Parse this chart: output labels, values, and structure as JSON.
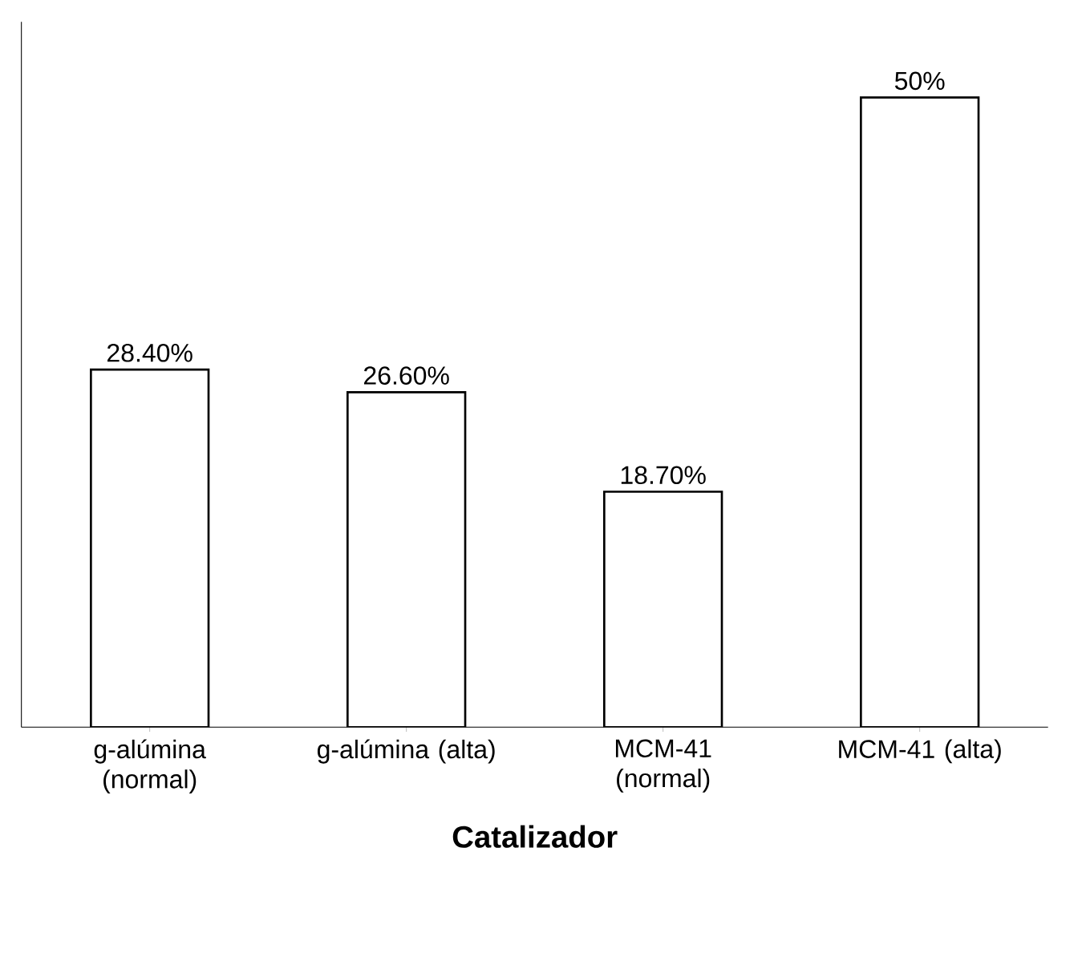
{
  "chart_data": {
    "type": "bar",
    "xlabel": "Catalizador",
    "categories": [
      "g-alúmina (normal)",
      "g-alúmina (alta)",
      "MCM-41 (normal)",
      "MCM-41 (alta)"
    ],
    "values": [
      28.4,
      26.6,
      18.7,
      50
    ],
    "value_labels": [
      "28.40%",
      "26.60%",
      "18.70%",
      "50%"
    ],
    "color": "#ffffff"
  }
}
